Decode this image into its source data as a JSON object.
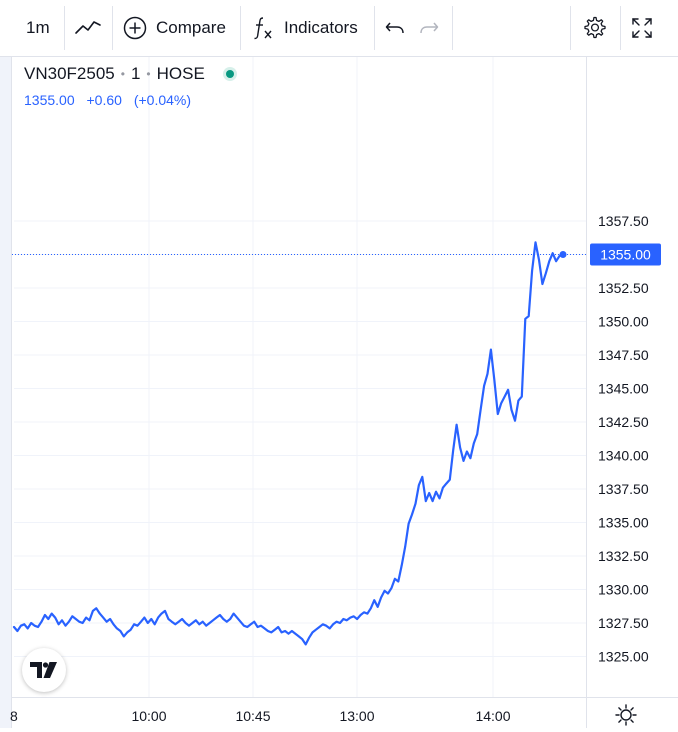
{
  "toolbar": {
    "interval": "1m",
    "compare_label": "Compare",
    "indicators_label": "Indicators"
  },
  "legend": {
    "symbol": "VN30F2505",
    "interval": "1",
    "exchange": "HOSE",
    "last": "1355.00",
    "change": "+0.60",
    "change_pct": "(+0.04%)"
  },
  "last_price_label": "1355.00",
  "x_edge_label": "8",
  "colors": {
    "line": "#2962ff",
    "price_tag": "#2962ff",
    "grid": "#f0f3fa",
    "live": "#089981"
  },
  "chart_data": {
    "type": "line",
    "x_tick_labels": [
      "10:00",
      "10:45",
      "13:00",
      "14:00"
    ],
    "y_tick_labels": [
      "1325.00",
      "1327.50",
      "1330.00",
      "1332.50",
      "1335.00",
      "1337.50",
      "1340.00",
      "1342.50",
      "1345.00",
      "1347.50",
      "1350.00",
      "1352.50",
      "1355.00",
      "1357.50"
    ],
    "ylim": [
      1323.6,
      1359.8
    ],
    "series": [
      {
        "values": [
          1327.2,
          1326.9,
          1327.3,
          1327.4,
          1327.1,
          1327.5,
          1327.3,
          1327.2,
          1327.6,
          1328.1,
          1327.8,
          1328.2,
          1327.9,
          1327.4,
          1327.7,
          1327.3,
          1327.6,
          1328.0,
          1327.8,
          1327.6,
          1327.5,
          1327.9,
          1327.7,
          1328.4,
          1328.6,
          1328.2,
          1327.9,
          1327.6,
          1327.8,
          1327.4,
          1327.1,
          1326.9,
          1326.5,
          1326.8,
          1327.0,
          1327.4,
          1327.3,
          1327.6,
          1327.9,
          1327.5,
          1327.8,
          1327.4,
          1327.9,
          1328.2,
          1328.4,
          1327.8,
          1327.6,
          1327.4,
          1327.6,
          1327.8,
          1327.5,
          1327.3,
          1327.5,
          1327.7,
          1327.4,
          1327.6,
          1327.3,
          1327.5,
          1327.7,
          1327.9,
          1328.1,
          1327.8,
          1327.6,
          1327.8,
          1328.2,
          1327.9,
          1327.6,
          1327.3,
          1327.2,
          1327.4,
          1327.6,
          1327.2,
          1327.3,
          1327.1,
          1326.9,
          1326.8,
          1327.0,
          1327.2,
          1326.8,
          1326.9,
          1326.7,
          1326.9,
          1326.7,
          1326.5,
          1326.3,
          1325.9,
          1326.4,
          1326.8,
          1327.0,
          1327.2,
          1327.4,
          1327.3,
          1327.1,
          1327.4,
          1327.6,
          1327.5,
          1327.8,
          1327.7,
          1327.9,
          1328.0,
          1327.8,
          1328.1,
          1328.3,
          1328.2,
          1328.6,
          1329.2,
          1328.7,
          1329.4,
          1329.9,
          1329.7,
          1330.1,
          1330.8,
          1330.6,
          1331.8,
          1333.2,
          1334.9,
          1335.6,
          1336.4,
          1337.8,
          1338.4,
          1336.6,
          1337.2,
          1336.6,
          1337.3,
          1336.8,
          1337.6,
          1337.9,
          1338.2,
          1340.4,
          1342.3,
          1340.6,
          1339.6,
          1340.3,
          1339.8,
          1340.9,
          1341.6,
          1343.4,
          1345.2,
          1346.1,
          1347.9,
          1345.6,
          1343.1,
          1343.9,
          1344.4,
          1344.9,
          1343.4,
          1342.6,
          1344.1,
          1344.4,
          1350.2,
          1350.4,
          1353.8,
          1355.9,
          1354.6,
          1352.8,
          1353.6,
          1354.5,
          1355.1,
          1354.5,
          1354.9,
          1355.0
        ]
      }
    ]
  }
}
